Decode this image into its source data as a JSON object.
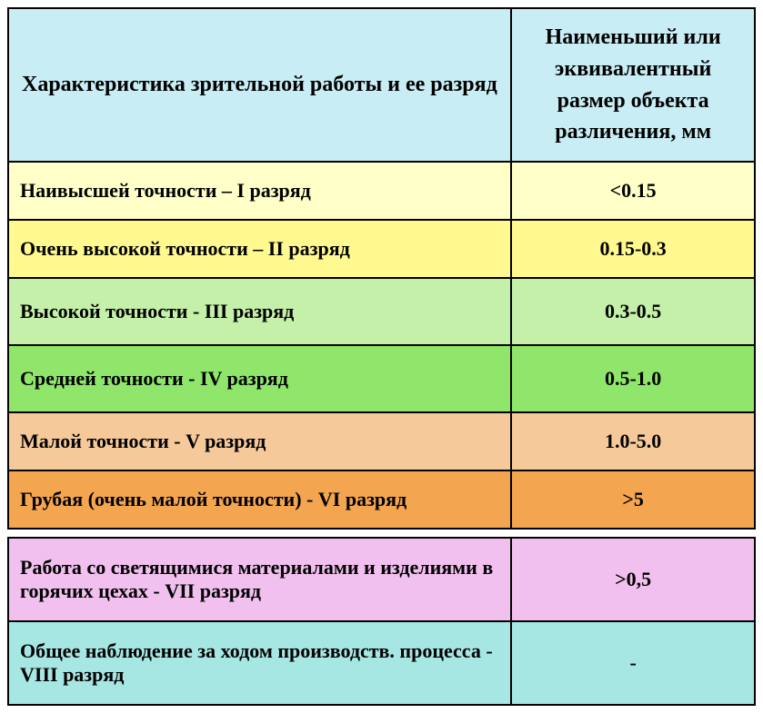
{
  "header": {
    "left": "Характеристика зрительной работы и ее разряд",
    "right": "Наименьший или эквивалентный размер объекта различения, мм",
    "bg": "#c9edf4"
  },
  "rows": [
    {
      "label": "Наивысшей точности – I разряд",
      "value": "<0.15",
      "bg": "#ffffc7",
      "tall": false
    },
    {
      "label": "Очень  высокой точности – II разряд",
      "value": "0.15-0.3",
      "bg": "#fff98f",
      "tall": false
    },
    {
      "label": "Высокой точности  -  III разряд",
      "value": "0.3-0.5",
      "bg": "#c5f0a9",
      "tall": true
    },
    {
      "label": "Средней точности  -  IV разряд",
      "value": "0.5-1.0",
      "bg": "#8fe66a",
      "tall": true
    },
    {
      "label": "Малой точности - V разряд",
      "value": "1.0-5.0",
      "bg": "#f6c99a",
      "tall": false
    },
    {
      "label": "Грубая (очень малой точности) - VI разряд",
      "value": ">5",
      "bg": "#f3a54f",
      "tall": false
    }
  ],
  "bottom_rows": [
    {
      "label": "Работа со светящимися материалами и изделиями в горячих цехах - VII разряд",
      "value": ">0,5",
      "bg": "#f2c0ee"
    },
    {
      "label": "Общее наблюдение за ходом производств. процесса  - VIII разряд",
      "value": "-",
      "bg": "#a6e6e3"
    }
  ],
  "border_color": "#000000",
  "font_family": "Times New Roman"
}
